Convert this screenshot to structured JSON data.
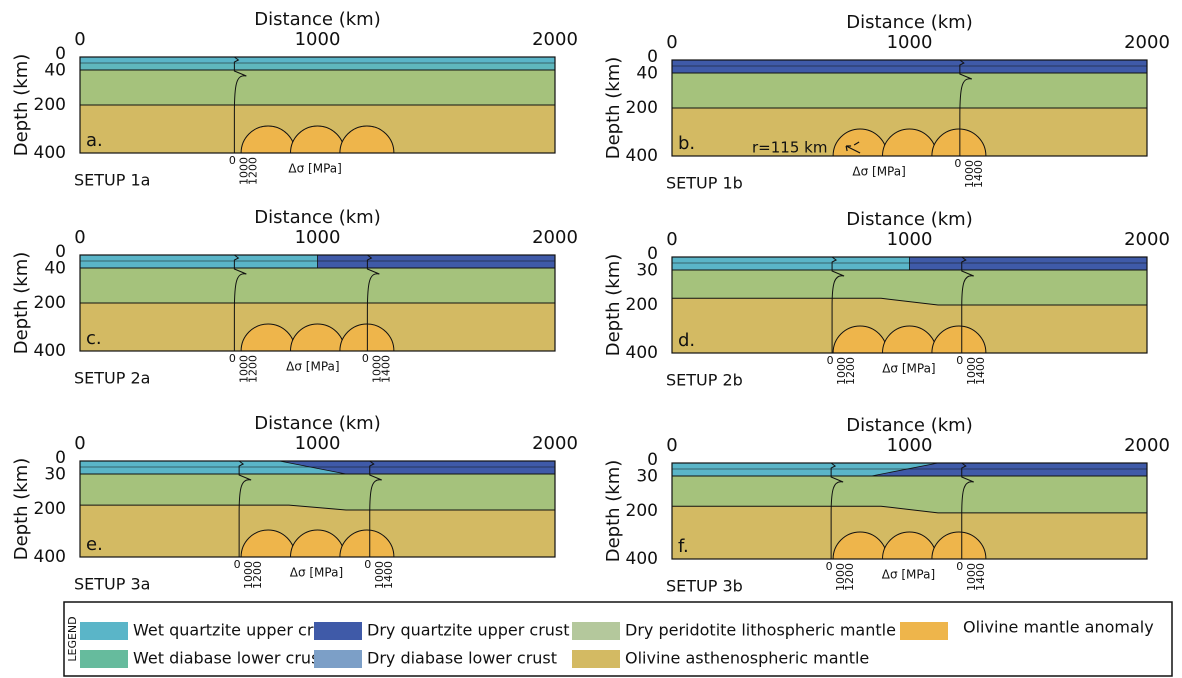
{
  "panels": [
    {
      "letter": "a.",
      "setup": "SETUP 1a",
      "distance_title": "Distance (km)",
      "distance_ticks": [
        "0",
        "1000",
        "2000"
      ],
      "depth_title": "Depth (km)",
      "depth_ticks": [
        "0",
        "40",
        "200",
        "400"
      ],
      "profiles": [
        [
          "0",
          "1000",
          "1200"
        ]
      ],
      "stress_label": "Δσ [MPa]"
    },
    {
      "letter": "b.",
      "setup": "SETUP 1b",
      "distance_title": "Distance (km)",
      "distance_ticks": [
        "0",
        "1000",
        "2000"
      ],
      "depth_title": "Depth (km)",
      "depth_ticks": [
        "0",
        "40",
        "200",
        "400"
      ],
      "profiles": [
        [
          "0",
          "1000",
          "1400"
        ]
      ],
      "stress_label": "Δσ [MPa]",
      "radius_label": "r=115 km"
    },
    {
      "letter": "c.",
      "setup": "SETUP 2a",
      "distance_title": "Distance (km)",
      "distance_ticks": [
        "0",
        "1000",
        "2000"
      ],
      "depth_title": "Depth (km)",
      "depth_ticks": [
        "0",
        "40",
        "200",
        "400"
      ],
      "profiles": [
        [
          "0",
          "1000",
          "1200"
        ],
        [
          "0",
          "1000",
          "1400"
        ]
      ],
      "stress_label": "Δσ [MPa]"
    },
    {
      "letter": "d.",
      "setup": "SETUP 2b",
      "distance_title": "Distance (km)",
      "distance_ticks": [
        "0",
        "1000",
        "2000"
      ],
      "depth_title": "Depth (km)",
      "depth_ticks": [
        "0",
        "30",
        "200",
        "400"
      ],
      "profiles": [
        [
          "0",
          "1000",
          "1200"
        ],
        [
          "0",
          "1000",
          "1400"
        ]
      ],
      "stress_label": "Δσ [MPa]"
    },
    {
      "letter": "e.",
      "setup": "SETUP 3a",
      "distance_title": "Distance (km)",
      "distance_ticks": [
        "0",
        "1000",
        "2000"
      ],
      "depth_title": "Depth (km)",
      "depth_ticks": [
        "0",
        "30",
        "200",
        "400"
      ],
      "profiles": [
        [
          "0",
          "1000",
          "1200"
        ],
        [
          "0",
          "1000",
          "1400"
        ]
      ],
      "stress_label": "Δσ [MPa]"
    },
    {
      "letter": "f.",
      "setup": "SETUP 3b",
      "distance_title": "Distance (km)",
      "distance_ticks": [
        "0",
        "1000",
        "2000"
      ],
      "depth_title": "Depth (km)",
      "depth_ticks": [
        "0",
        "30",
        "200",
        "400"
      ],
      "profiles": [
        [
          "0",
          "1000",
          "1200"
        ],
        [
          "0",
          "1000",
          "1400"
        ]
      ],
      "stress_label": "Δσ [MPa]"
    }
  ],
  "legend": {
    "title": "LEGEND",
    "items": [
      {
        "label": "Wet quartzite upper crust",
        "color": "#5ab5c8"
      },
      {
        "label": "Wet diabase lower crust",
        "color": "#66bb9d"
      },
      {
        "label": "Dry quartzite upper crust",
        "color": "#3f5aa8"
      },
      {
        "label": "Dry diabase lower crust",
        "color": "#7c9fc7"
      },
      {
        "label": "Dry peridotite lithospheric mantle",
        "color": "#b4c89c"
      },
      {
        "label": "Olivine asthenospheric mantle",
        "color": "#d3ba63"
      },
      {
        "label": "Olivine mantle anomaly",
        "color": "#eeb54b"
      }
    ]
  }
}
